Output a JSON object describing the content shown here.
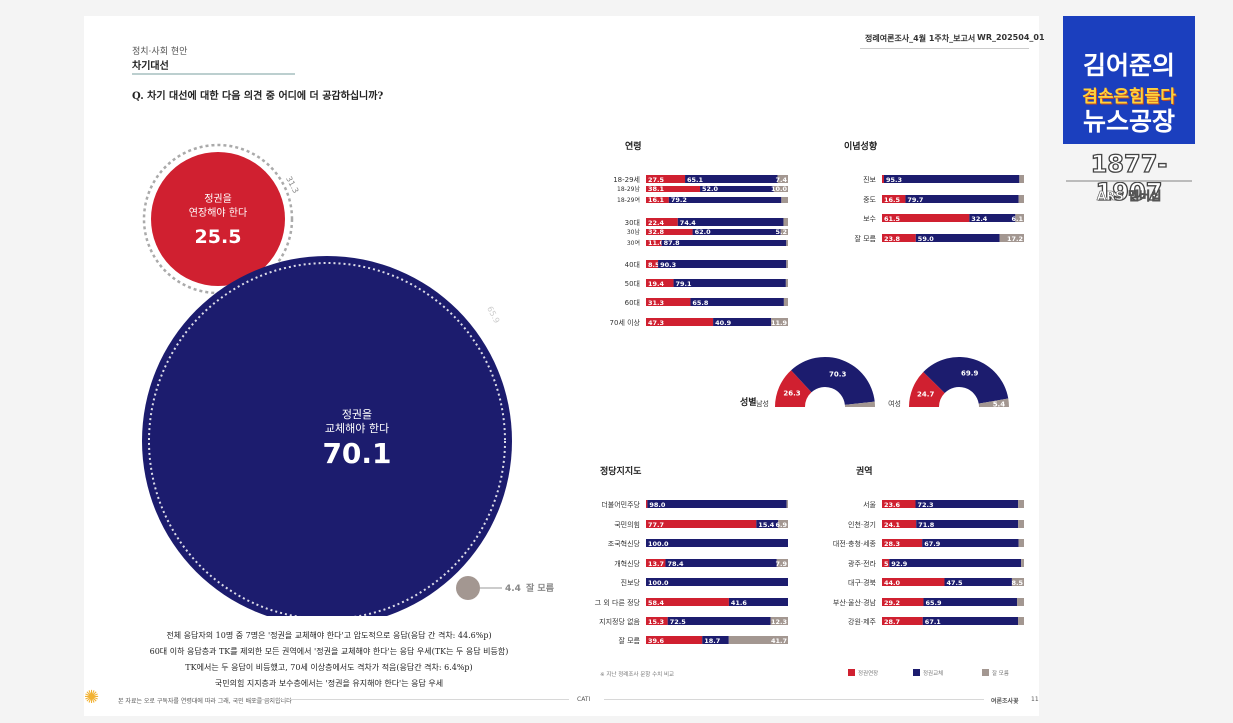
{
  "header": {
    "category": "정치·사회 현안",
    "section": "차기대선",
    "question": "Q. 차기 대선에 대한 다음 의견 중 어디에 더 공감하십니까?",
    "report_name": "정례여론조사_4월 1주차_보고서",
    "report_code": "WR_202504_01"
  },
  "bubbles": {
    "extend_label": "정권을\n연장해야 한다",
    "extend_value": "25.5",
    "extend_prev": "31.3",
    "replace_label": "정권을\n교체해야 한다",
    "replace_value": "70.1",
    "replace_prev": "65.9",
    "dk_value": "4.4",
    "dk_label": "잘 모름"
  },
  "summary": [
    "전체 응답자의 10명 중 7명은 '정권을 교체해야 한다'고 압도적으로 응답(응답 간 격차: 44.6%p)",
    "60대 이하 응답층과 TK를 제외한 모든 권역에서 '정권을 교체해야 한다'는 응답 우세(TK는 두 응답 비등함)",
    "TK에서는 두 응답이 비등했고, 70세 이상층에서도 격차가 적음(응답간 격차: 6.4%p)",
    "국민의힘 지지층과 보수층에서는 '정권을 유지해야 한다'는 응답 우세"
  ],
  "footer": {
    "left_note": "본 자료는 오로 구독자를 연령대에 따라 그래, 국민 배포를 금지합니다",
    "center": "CATI",
    "right": "여론조사꽃",
    "page": "11",
    "chart_note": "※ 지난 정례조사 문항 수치 비교"
  },
  "colors": {
    "red": "#d02030",
    "navy": "#1c1c6e",
    "gray": "#a39791"
  },
  "chart_data": [
    {
      "type": "bar",
      "title": "연령",
      "stacked": true,
      "series_order": [
        "extend",
        "replace",
        "dk"
      ],
      "categories": [
        "18-29세",
        "18-29남",
        "18-29여",
        "30대",
        "30남",
        "30여",
        "40대",
        "50대",
        "60대",
        "70세 이상"
      ],
      "groups": [
        [
          0,
          1,
          2
        ],
        [
          3,
          4,
          5
        ],
        [
          6
        ],
        [
          7
        ],
        [
          8
        ],
        [
          9
        ]
      ],
      "values": [
        [
          27.5,
          65.1,
          7.4
        ],
        [
          38.1,
          52.0,
          10.0
        ],
        [
          16.1,
          79.2,
          4.7
        ],
        [
          22.4,
          74.4,
          3.2
        ],
        [
          32.8,
          62.0,
          5.2
        ],
        [
          11.0,
          87.8,
          1.2
        ],
        [
          8.5,
          90.3,
          1.2
        ],
        [
          19.4,
          79.1,
          1.5
        ],
        [
          31.3,
          65.8,
          2.9
        ],
        [
          47.3,
          40.9,
          11.9
        ]
      ],
      "labels": [
        [
          "27.5",
          "65.1",
          "7.4"
        ],
        [
          "38.1",
          "52.0",
          "10.0"
        ],
        [
          "16.1",
          "79.2",
          ""
        ],
        [
          "22.4",
          "74.4",
          ""
        ],
        [
          "32.8",
          "62.0",
          "5.2"
        ],
        [
          "11.0",
          "87.8",
          ""
        ],
        [
          "8.5",
          "90.3",
          ""
        ],
        [
          "19.4",
          "79.1",
          ""
        ],
        [
          "31.3",
          "65.8",
          ""
        ],
        [
          "47.3",
          "40.9",
          "11.9"
        ]
      ]
    },
    {
      "type": "bar",
      "title": "이념성향",
      "stacked": true,
      "categories": [
        "진보",
        "중도",
        "보수",
        "잘 모름"
      ],
      "groups": [
        [
          0
        ],
        [
          1
        ],
        [
          2
        ],
        [
          3
        ]
      ],
      "values": [
        [
          1.4,
          95.3,
          3.3
        ],
        [
          16.5,
          79.7,
          3.8
        ],
        [
          61.5,
          32.4,
          6.1
        ],
        [
          23.8,
          59.0,
          17.2
        ]
      ],
      "labels": [
        [
          "",
          "95.3",
          ""
        ],
        [
          "16.5",
          "79.7",
          ""
        ],
        [
          "61.5",
          "32.4",
          "6.1"
        ],
        [
          "23.8",
          "59.0",
          "17.2"
        ]
      ]
    },
    {
      "type": "pie",
      "title": "성별",
      "semicircle": true,
      "categories": [
        "남성",
        "여성"
      ],
      "values": [
        [
          26.3,
          70.3,
          3.4
        ],
        [
          24.7,
          69.9,
          5.4
        ]
      ],
      "labels": [
        [
          "26.3",
          "70.3",
          ""
        ],
        [
          "24.7",
          "69.9",
          "5.4"
        ]
      ]
    },
    {
      "type": "bar",
      "title": "정당지지도",
      "stacked": true,
      "categories": [
        "더불어민주당",
        "국민의힘",
        "조국혁신당",
        "개혁신당",
        "진보당",
        "그 외 다른 정당",
        "지지정당 없음",
        "잘 모름"
      ],
      "groups": [
        [
          0
        ],
        [
          1
        ],
        [
          2
        ],
        [
          3
        ],
        [
          4
        ],
        [
          5
        ],
        [
          6
        ],
        [
          7
        ]
      ],
      "values": [
        [
          1.0,
          98.0,
          1.0
        ],
        [
          77.7,
          15.4,
          6.9
        ],
        [
          0,
          100.0,
          0
        ],
        [
          13.7,
          78.4,
          7.9
        ],
        [
          0,
          100.0,
          0
        ],
        [
          58.4,
          41.6,
          0
        ],
        [
          15.3,
          72.5,
          12.3
        ],
        [
          39.6,
          18.7,
          41.7
        ]
      ],
      "labels": [
        [
          "",
          "98.0",
          ""
        ],
        [
          "77.7",
          "15.4",
          "6.9"
        ],
        [
          "",
          "100.0",
          ""
        ],
        [
          "13.7",
          "78.4",
          "7.9"
        ],
        [
          "",
          "100.0",
          ""
        ],
        [
          "58.4",
          "41.6",
          ""
        ],
        [
          "15.3",
          "72.5",
          "12.3"
        ],
        [
          "39.6",
          "18.7",
          "41.7"
        ]
      ]
    },
    {
      "type": "bar",
      "title": "권역",
      "stacked": true,
      "categories": [
        "서울",
        "인천·경기",
        "대전·충청·세종",
        "광주·전라",
        "대구·경북",
        "부산·울산·경남",
        "강원·제주"
      ],
      "groups": [
        [
          0
        ],
        [
          1
        ],
        [
          2
        ],
        [
          3
        ],
        [
          4
        ],
        [
          5
        ],
        [
          6
        ]
      ],
      "values": [
        [
          23.6,
          72.3,
          4.1
        ],
        [
          24.1,
          71.8,
          4.1
        ],
        [
          28.3,
          67.9,
          3.8
        ],
        [
          5.1,
          92.9,
          2.0
        ],
        [
          44.0,
          47.5,
          8.5
        ],
        [
          29.2,
          65.9,
          4.9
        ],
        [
          28.7,
          67.1,
          4.2
        ]
      ],
      "labels": [
        [
          "23.6",
          "72.3",
          ""
        ],
        [
          "24.1",
          "71.8",
          ""
        ],
        [
          "28.3",
          "67.9",
          ""
        ],
        [
          "5.1",
          "92.9",
          ""
        ],
        [
          "44.0",
          "47.5",
          "8.5"
        ],
        [
          "29.2",
          "65.9",
          ""
        ],
        [
          "28.7",
          "67.1",
          ""
        ]
      ]
    }
  ],
  "legend": [
    "정권연장",
    "정권교체",
    "잘 모름"
  ],
  "logo": {
    "line1": "김어준의",
    "line2": "겸손은힘들다",
    "line3": "뉴스공장",
    "number": "1877-1907",
    "subtitle": "ARS 멤버십"
  }
}
